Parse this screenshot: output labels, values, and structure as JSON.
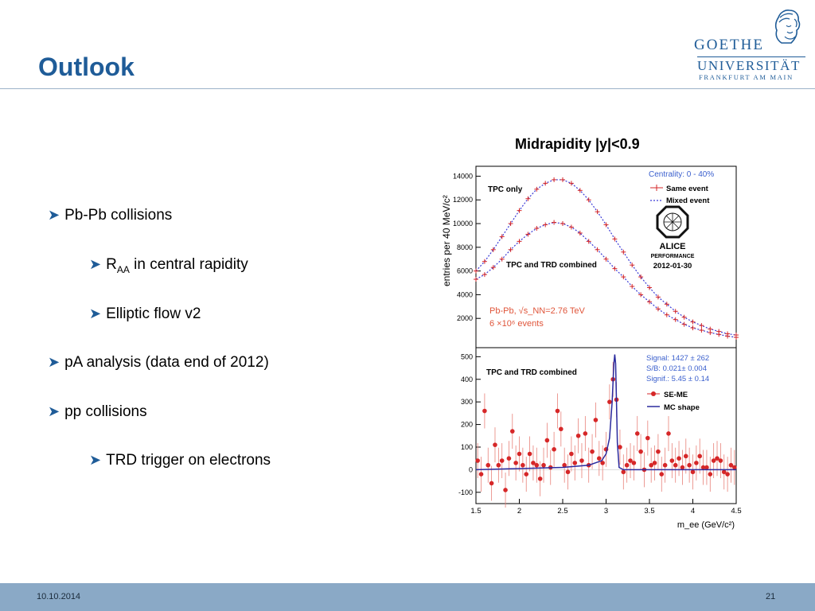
{
  "slide": {
    "title": "Outlook",
    "date": "10.10.2014",
    "page": "21"
  },
  "logo": {
    "line1": "GOETHE",
    "line2": "UNIVERSITÄT",
    "line3": "FRANKFURT AM MAIN"
  },
  "bullets": [
    {
      "level": 1,
      "text": "Pb-Pb collisions"
    },
    {
      "level": 2,
      "text": "R",
      "sub": "AA",
      "rest": " in central rapidity"
    },
    {
      "level": 2,
      "text": "Elliptic flow v2"
    },
    {
      "level": 1,
      "text": "pA analysis (data end of 2012)"
    },
    {
      "level": 1,
      "text": "pp collisions"
    },
    {
      "level": 2,
      "text": "TRD trigger on electrons"
    }
  ],
  "figure": {
    "heading": "Midrapidity |y|<0.9"
  },
  "chart_data": [
    {
      "type": "scatter",
      "panel": "top",
      "ylabel": "entries per 40 MeV/c²",
      "ylim": [
        0,
        15000
      ],
      "xlim": [
        1.5,
        4.5
      ],
      "yticks": [
        "14000",
        "12000",
        "10000",
        "8000",
        "6000",
        "4000",
        "2000"
      ],
      "labels": [
        "TPC only",
        "TPC and TRD combined"
      ],
      "legend": {
        "header": "Centrality: 0 - 40%",
        "entries": [
          "Same event",
          "Mixed event"
        ]
      },
      "alice_text": [
        "ALICE",
        "PERFORMANCE",
        "2012-01-30"
      ],
      "annotation": [
        "Pb-Pb, √s_NN=2.76 TeV",
        "6 ×10⁶ events"
      ],
      "series": [
        {
          "name": "TPC only",
          "x": [
            1.5,
            1.6,
            1.7,
            1.8,
            1.9,
            2.0,
            2.1,
            2.2,
            2.3,
            2.4,
            2.5,
            2.6,
            2.7,
            2.8,
            2.9,
            3.0,
            3.1,
            3.2,
            3.3,
            3.4,
            3.5,
            3.6,
            3.7,
            3.8,
            3.9,
            4.0,
            4.1,
            4.2,
            4.3,
            4.4,
            4.5
          ],
          "y": [
            6000,
            6800,
            7800,
            8900,
            10000,
            11100,
            12100,
            12900,
            13400,
            13700,
            13700,
            13400,
            12800,
            12000,
            11000,
            9900,
            8700,
            7600,
            6500,
            5500,
            4600,
            3800,
            3200,
            2600,
            2100,
            1700,
            1400,
            1100,
            900,
            700,
            600
          ]
        },
        {
          "name": "TPC and TRD combined",
          "x": [
            1.5,
            1.6,
            1.7,
            1.8,
            1.9,
            2.0,
            2.1,
            2.2,
            2.3,
            2.4,
            2.5,
            2.6,
            2.7,
            2.8,
            2.9,
            3.0,
            3.1,
            3.2,
            3.3,
            3.4,
            3.5,
            3.6,
            3.7,
            3.8,
            3.9,
            4.0,
            4.1,
            4.2,
            4.3,
            4.4,
            4.5
          ],
          "y": [
            5300,
            5700,
            6300,
            7000,
            7800,
            8500,
            9100,
            9600,
            9900,
            10100,
            10000,
            9700,
            9200,
            8500,
            7800,
            7000,
            6200,
            5500,
            4700,
            4000,
            3400,
            2800,
            2300,
            1900,
            1500,
            1200,
            1000,
            800,
            650,
            500,
            400
          ]
        }
      ]
    },
    {
      "type": "scatter",
      "panel": "bottom",
      "xlabel": "m_ee (GeV/c²)",
      "xlim": [
        1.5,
        4.5
      ],
      "ylim": [
        -150,
        540
      ],
      "xticks": [
        "1.5",
        "2",
        "2.5",
        "3",
        "3.5",
        "4",
        "4.5"
      ],
      "yticks": [
        "500",
        "400",
        "300",
        "200",
        "100",
        "0",
        "-100"
      ],
      "label": "TPC and TRD combined",
      "stats": [
        "Signal: 1427 ± 262",
        "S/B: 0.021± 0.004",
        "Signif.: 5.45 ± 0.14"
      ],
      "legend": {
        "entries": [
          "SE-ME",
          "MC shape"
        ]
      },
      "series": [
        {
          "name": "SE-ME",
          "x": [
            1.52,
            1.56,
            1.6,
            1.64,
            1.68,
            1.72,
            1.76,
            1.8,
            1.84,
            1.88,
            1.92,
            1.96,
            2.0,
            2.04,
            2.08,
            2.12,
            2.16,
            2.2,
            2.24,
            2.28,
            2.32,
            2.36,
            2.4,
            2.44,
            2.48,
            2.52,
            2.56,
            2.6,
            2.64,
            2.68,
            2.72,
            2.76,
            2.8,
            2.84,
            2.88,
            2.92,
            2.96,
            3.0,
            3.04,
            3.08,
            3.12,
            3.16,
            3.2,
            3.24,
            3.28,
            3.32,
            3.36,
            3.4,
            3.44,
            3.48,
            3.52,
            3.56,
            3.6,
            3.64,
            3.68,
            3.72,
            3.76,
            3.8,
            3.84,
            3.88,
            3.92,
            3.96,
            4.0,
            4.04,
            4.08,
            4.12,
            4.16,
            4.2,
            4.24,
            4.28,
            4.32,
            4.36,
            4.4,
            4.44,
            4.48
          ],
          "y": [
            40,
            -20,
            260,
            20,
            -60,
            110,
            20,
            40,
            -90,
            50,
            170,
            30,
            70,
            20,
            -20,
            70,
            30,
            20,
            -40,
            20,
            130,
            10,
            90,
            260,
            180,
            20,
            -10,
            70,
            30,
            150,
            40,
            160,
            20,
            80,
            220,
            50,
            30,
            90,
            300,
            400,
            310,
            100,
            -10,
            20,
            40,
            30,
            160,
            80,
            0,
            140,
            20,
            30,
            80,
            -20,
            20,
            160,
            40,
            20,
            50,
            10,
            60,
            20,
            -10,
            30,
            60,
            10,
            10,
            -20,
            40,
            50,
            40,
            -10,
            -20,
            20,
            10
          ]
        },
        {
          "name": "MC shape",
          "x": [
            1.5,
            2.0,
            2.5,
            2.8,
            2.95,
            3.0,
            3.04,
            3.07,
            3.09,
            3.1,
            3.11,
            3.12,
            3.13,
            3.15,
            3.2,
            3.5,
            4.0,
            4.5
          ],
          "y": [
            0,
            5,
            10,
            20,
            40,
            70,
            140,
            300,
            470,
            510,
            470,
            300,
            120,
            10,
            0,
            0,
            0,
            0
          ]
        }
      ]
    }
  ]
}
